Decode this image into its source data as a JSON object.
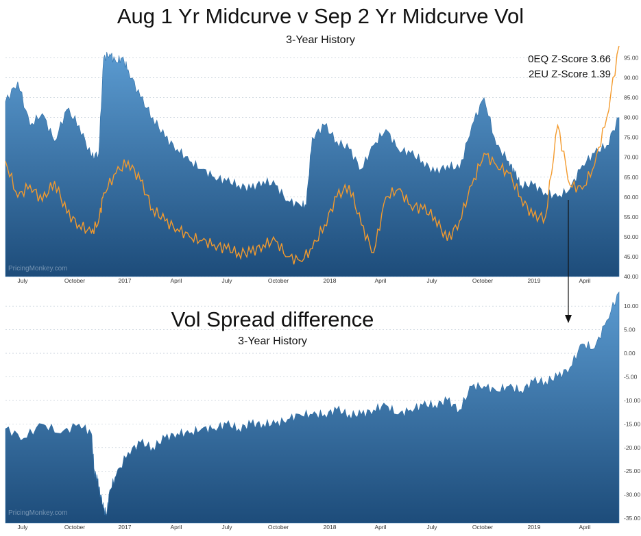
{
  "header": {
    "title": "Aug 1 Yr Midcurve v Sep 2 Yr Midcurve Vol",
    "subtitle": "3-Year History",
    "zscore_oeq": "0EQ Z-Score 3.66",
    "zscore_2eu": "2EU Z-Score 1.39",
    "watermark": "PricingMonkey.com"
  },
  "bottom_header": {
    "title": "Vol Spread difference",
    "subtitle": "3-Year History",
    "watermark": "PricingMonkey.com"
  },
  "colors": {
    "area_top": "#4e8fc6",
    "area_bottom": "#1f4f7e",
    "line": "#f39a2d",
    "grid": "#b8c4d0"
  },
  "chart_data": [
    {
      "type": "area",
      "x_labels": [
        "July",
        "October",
        "2017",
        "April",
        "July",
        "October",
        "2018",
        "April",
        "July",
        "October",
        "2019",
        "April"
      ],
      "ylim": [
        40,
        97.5
      ],
      "y_ticks": [
        "95.00",
        "90.00",
        "85.00",
        "80.00",
        "75.00",
        "70.00",
        "65.00",
        "60.00",
        "55.00",
        "50.00",
        "45.00",
        "40.00"
      ],
      "grid": true,
      "series": [
        {
          "kind": "area",
          "x": [
            0,
            0.02,
            0.04,
            0.06,
            0.08,
            0.1,
            0.12,
            0.14,
            0.152,
            0.16,
            0.17,
            0.18,
            0.19,
            0.2,
            0.22,
            0.24,
            0.26,
            0.28,
            0.3,
            0.32,
            0.34,
            0.36,
            0.38,
            0.4,
            0.42,
            0.44,
            0.46,
            0.48,
            0.49,
            0.5,
            0.52,
            0.54,
            0.56,
            0.58,
            0.6,
            0.62,
            0.64,
            0.66,
            0.68,
            0.7,
            0.72,
            0.74,
            0.76,
            0.78,
            0.8,
            0.82,
            0.83,
            0.84,
            0.86,
            0.88,
            0.9,
            0.92,
            0.94,
            0.96,
            0.98,
            1.0
          ],
          "values": [
            84,
            89,
            78,
            81,
            74,
            82,
            78,
            70,
            71,
            95,
            96,
            94,
            95,
            92,
            85,
            80,
            75,
            72,
            69,
            67,
            65,
            64,
            63,
            62,
            64,
            63,
            59,
            58,
            58,
            75,
            78,
            74,
            72,
            67,
            73,
            77,
            72,
            71,
            69,
            66,
            68,
            67,
            78,
            85,
            73,
            69,
            66,
            63,
            63,
            61,
            60,
            62,
            68,
            71,
            73,
            80
          ]
        },
        {
          "kind": "line",
          "x": [
            0,
            0.02,
            0.04,
            0.06,
            0.08,
            0.1,
            0.12,
            0.14,
            0.152,
            0.16,
            0.18,
            0.2,
            0.22,
            0.24,
            0.26,
            0.28,
            0.3,
            0.32,
            0.34,
            0.36,
            0.38,
            0.4,
            0.42,
            0.44,
            0.46,
            0.48,
            0.5,
            0.52,
            0.54,
            0.56,
            0.58,
            0.6,
            0.62,
            0.64,
            0.66,
            0.68,
            0.7,
            0.72,
            0.74,
            0.76,
            0.78,
            0.8,
            0.82,
            0.84,
            0.86,
            0.88,
            0.9,
            0.92,
            0.94,
            0.96,
            0.98,
            1.0
          ],
          "values": [
            69,
            60,
            63,
            59,
            64,
            56,
            53,
            51,
            54,
            61,
            66,
            69,
            64,
            57,
            54,
            52,
            50,
            49,
            48,
            47,
            46,
            46,
            48,
            49,
            45,
            44,
            47,
            53,
            60,
            63,
            53,
            46,
            60,
            62,
            58,
            57,
            55,
            49,
            54,
            63,
            71,
            68,
            66,
            60,
            55,
            55,
            78,
            63,
            62,
            68,
            80,
            98
          ]
        }
      ]
    },
    {
      "type": "area",
      "x_labels": [
        "July",
        "October",
        "2017",
        "April",
        "July",
        "October",
        "2018",
        "April",
        "July",
        "October",
        "2019",
        "April"
      ],
      "ylim": [
        -36,
        12.5
      ],
      "y_ticks": [
        "10.00",
        "5.00",
        "0.00",
        "-5.00",
        "-10.00",
        "-15.00",
        "-20.00",
        "-25.00",
        "-30.00",
        "-35.00"
      ],
      "grid": true,
      "series": [
        {
          "kind": "area",
          "x": [
            0,
            0.03,
            0.06,
            0.09,
            0.12,
            0.14,
            0.145,
            0.15,
            0.155,
            0.16,
            0.165,
            0.17,
            0.18,
            0.2,
            0.22,
            0.24,
            0.26,
            0.28,
            0.3,
            0.32,
            0.34,
            0.36,
            0.38,
            0.4,
            0.42,
            0.44,
            0.46,
            0.48,
            0.5,
            0.52,
            0.54,
            0.56,
            0.58,
            0.6,
            0.62,
            0.64,
            0.66,
            0.68,
            0.7,
            0.72,
            0.74,
            0.76,
            0.78,
            0.8,
            0.82,
            0.84,
            0.86,
            0.88,
            0.9,
            0.92,
            0.94,
            0.96,
            0.98,
            1.0
          ],
          "values": [
            -16,
            -18,
            -15,
            -17,
            -15,
            -17,
            -25,
            -27,
            -30,
            -33,
            -34,
            -29,
            -26,
            -21,
            -19,
            -20,
            -18,
            -17,
            -17,
            -16,
            -16,
            -15,
            -16,
            -15,
            -15,
            -15,
            -14,
            -13,
            -13,
            -13,
            -12,
            -13,
            -13,
            -12,
            -11,
            -13,
            -12,
            -11,
            -11,
            -10,
            -12,
            -7,
            -7,
            -8,
            -7,
            -8,
            -6,
            -6,
            -5,
            -3,
            2,
            1,
            7,
            13
          ]
        }
      ]
    }
  ]
}
